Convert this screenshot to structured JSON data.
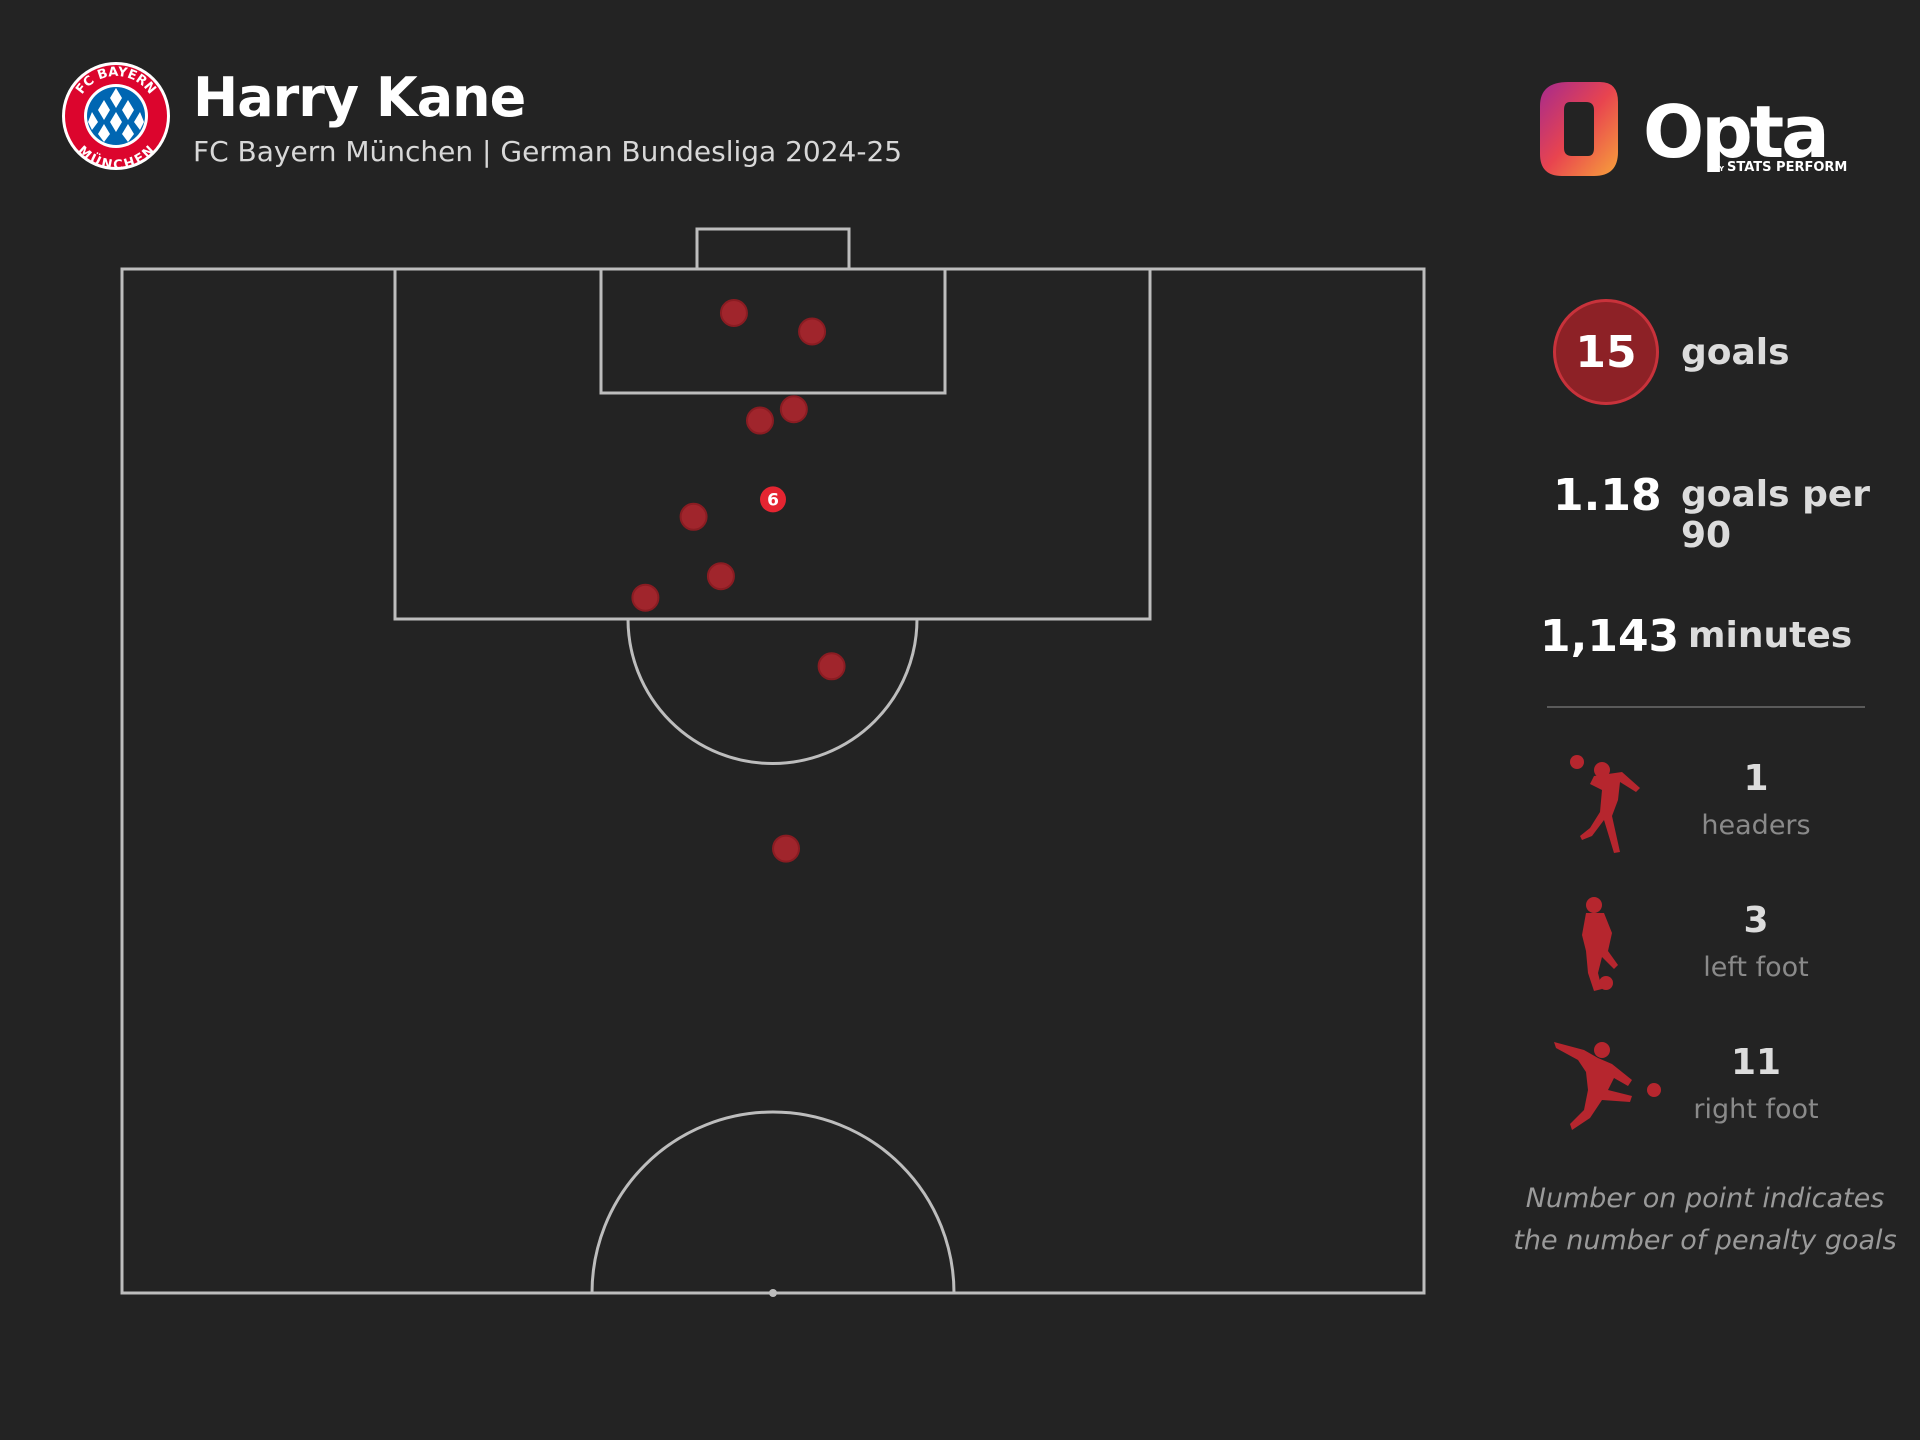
{
  "header": {
    "title": "Harry Kane",
    "subtitle": "FC Bayern München | German Bundesliga 2024-25",
    "crest_icon": "fc-bayern-crest-icon",
    "crest_text_top": "FC BAYERN",
    "crest_text_bottom": "MÜNCHEN",
    "brand_icon": "opta-logo-icon",
    "brand_name": "Opta",
    "brand_by": "BY",
    "brand_tagline": "STATS PERFORM"
  },
  "stats": {
    "goals": {
      "value": "15",
      "label": "goals"
    },
    "per90": {
      "value": "1.18",
      "label": "goals per 90"
    },
    "minutes": {
      "value": "1,143",
      "label": "minutes"
    }
  },
  "shot_types": [
    {
      "count": "1",
      "label": "headers",
      "icon": "header-player-icon"
    },
    {
      "count": "3",
      "label": "left foot",
      "icon": "left-foot-player-icon"
    },
    {
      "count": "11",
      "label": "right foot",
      "icon": "right-foot-player-icon"
    }
  ],
  "note": {
    "line1": "Number on point indicates",
    "line2": "the number of penalty goals"
  },
  "colors": {
    "background": "#232323",
    "goal_marker": "#b6262e",
    "penalty_marker": "#e52531",
    "pitch_lines": "#bdbdbd",
    "accent": "#c8323b"
  },
  "chart_data": {
    "type": "scatter",
    "title": "",
    "xlabel": "",
    "ylabel": "",
    "x_axis": "pitch width (0–100, left to right as viewed)",
    "y_axis": "distance from goal line (0–100 of half pitch)",
    "xlim": [
      0,
      100
    ],
    "ylim": [
      0,
      100
    ],
    "points": [
      {
        "x": 47.0,
        "y": 4.3,
        "label": ""
      },
      {
        "x": 53.0,
        "y": 6.1,
        "label": ""
      },
      {
        "x": 49.0,
        "y": 14.8,
        "label": ""
      },
      {
        "x": 51.6,
        "y": 13.7,
        "label": ""
      },
      {
        "x": 50.0,
        "y": 22.5,
        "label": "6",
        "penalty_goals": 6
      },
      {
        "x": 43.9,
        "y": 24.2,
        "label": ""
      },
      {
        "x": 46.0,
        "y": 30.0,
        "label": ""
      },
      {
        "x": 40.2,
        "y": 32.1,
        "label": ""
      },
      {
        "x": 54.5,
        "y": 38.8,
        "label": ""
      },
      {
        "x": 51.0,
        "y": 56.6,
        "label": ""
      }
    ]
  }
}
